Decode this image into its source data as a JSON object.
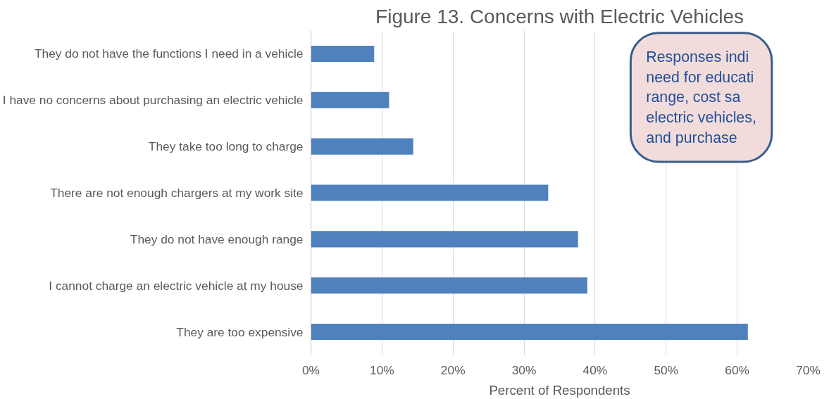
{
  "chart_data": {
    "type": "bar",
    "orientation": "horizontal",
    "title": "Figure 13. Concerns with Electric Vehicles",
    "xlabel": "Percent of Respondents",
    "categories": [
      "They do not have the functions I need in a vehicle",
      "I have no concerns about purchasing an electric vehicle",
      "They take too long to charge",
      "There are not enough chargers at my work site",
      "They do not have enough range",
      "I cannot charge an electric vehicle at my house",
      "They are too expensive"
    ],
    "series": [
      {
        "color": "#4f81bd",
        "values": [
          8.9,
          11.0,
          14.4,
          33.4,
          37.6,
          38.9,
          61.5
        ]
      }
    ],
    "xlim": [
      0,
      70
    ],
    "xticks": [
      {
        "value": 0,
        "label": "0%"
      },
      {
        "value": 10,
        "label": "10%"
      },
      {
        "value": 20,
        "label": "20%"
      },
      {
        "value": 30,
        "label": "30%"
      },
      {
        "value": 40,
        "label": "40%"
      },
      {
        "value": 50,
        "label": "50%"
      },
      {
        "value": 60,
        "label": "60%"
      },
      {
        "value": 70,
        "label": "70%"
      }
    ],
    "grid": "x",
    "annotations": [
      "Responses indi\nneed for educati\nrange, cost sa\nelectric vehicles,\nand purchase"
    ]
  }
}
